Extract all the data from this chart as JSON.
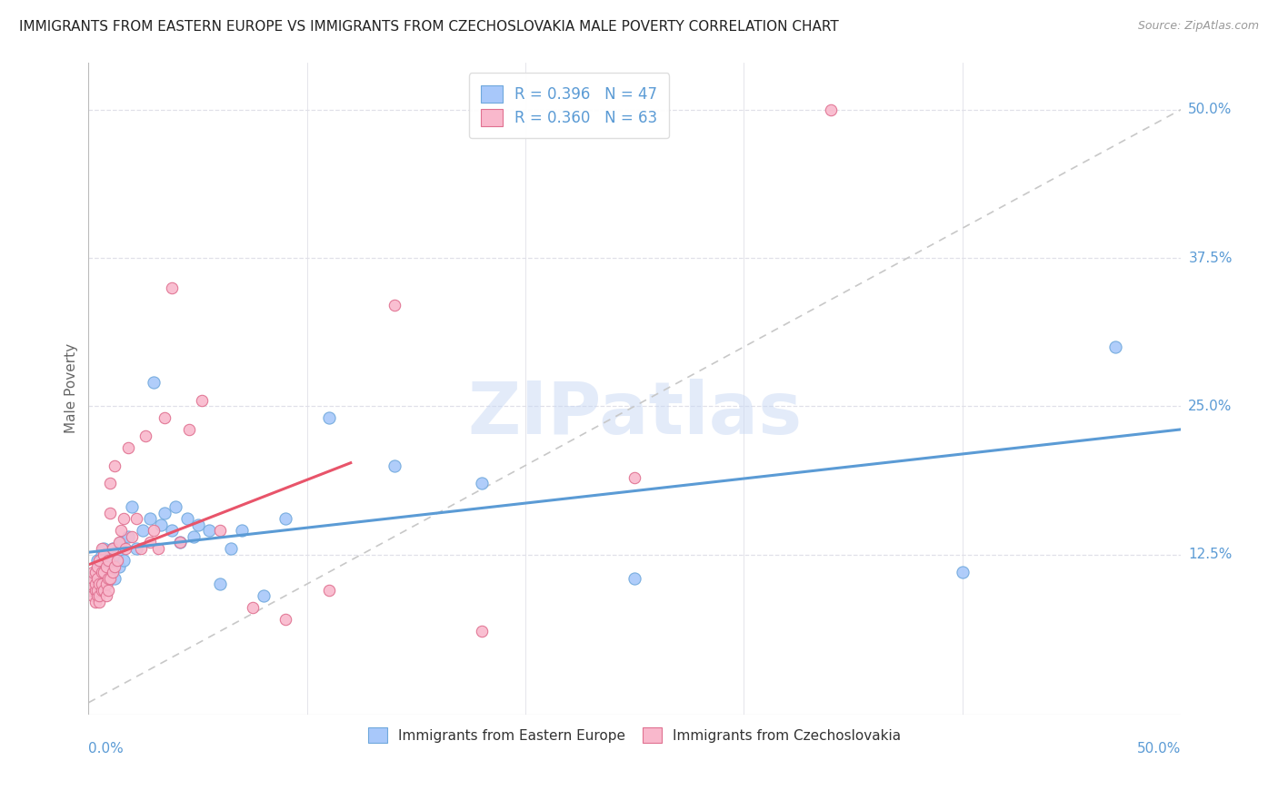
{
  "title": "IMMIGRANTS FROM EASTERN EUROPE VS IMMIGRANTS FROM CZECHOSLOVAKIA MALE POVERTY CORRELATION CHART",
  "source": "Source: ZipAtlas.com",
  "ylabel": "Male Poverty",
  "ytick_labels": [
    "12.5%",
    "25.0%",
    "37.5%",
    "50.0%"
  ],
  "ytick_vals": [
    0.125,
    0.25,
    0.375,
    0.5
  ],
  "xlim": [
    0,
    0.5
  ],
  "ylim": [
    -0.01,
    0.54
  ],
  "legend_blue_label": "R = 0.396   N = 47",
  "legend_pink_label": "R = 0.360   N = 63",
  "xlabel_bottom_left": "0.0%",
  "xlabel_bottom_right": "50.0%",
  "legend_blue_scatter": "Immigrants from Eastern Europe",
  "legend_pink_scatter": "Immigrants from Czechoslovakia",
  "watermark": "ZIPatlas",
  "blue_color": "#a8c8fa",
  "pink_color": "#f9b8cc",
  "blue_dot_edge": "#6fa8dc",
  "pink_dot_edge": "#e07090",
  "blue_line_color": "#5b9bd5",
  "pink_line_color": "#e8546a",
  "diag_line_color": "#c8c8c8",
  "grid_color": "#e0e0e8",
  "blue_x": [
    0.002,
    0.003,
    0.003,
    0.004,
    0.004,
    0.005,
    0.005,
    0.006,
    0.006,
    0.007,
    0.007,
    0.008,
    0.009,
    0.01,
    0.01,
    0.011,
    0.012,
    0.013,
    0.014,
    0.015,
    0.016,
    0.018,
    0.02,
    0.022,
    0.025,
    0.028,
    0.03,
    0.033,
    0.035,
    0.038,
    0.04,
    0.042,
    0.045,
    0.048,
    0.05,
    0.055,
    0.06,
    0.065,
    0.07,
    0.08,
    0.09,
    0.11,
    0.14,
    0.18,
    0.25,
    0.4,
    0.47
  ],
  "blue_y": [
    0.105,
    0.11,
    0.095,
    0.12,
    0.1,
    0.115,
    0.105,
    0.1,
    0.125,
    0.11,
    0.13,
    0.1,
    0.115,
    0.12,
    0.11,
    0.13,
    0.105,
    0.125,
    0.115,
    0.135,
    0.12,
    0.14,
    0.165,
    0.13,
    0.145,
    0.155,
    0.27,
    0.15,
    0.16,
    0.145,
    0.165,
    0.135,
    0.155,
    0.14,
    0.15,
    0.145,
    0.1,
    0.13,
    0.145,
    0.09,
    0.155,
    0.24,
    0.2,
    0.185,
    0.105,
    0.11,
    0.3
  ],
  "pink_x": [
    0.001,
    0.001,
    0.002,
    0.002,
    0.002,
    0.003,
    0.003,
    0.003,
    0.003,
    0.004,
    0.004,
    0.004,
    0.004,
    0.005,
    0.005,
    0.005,
    0.005,
    0.006,
    0.006,
    0.006,
    0.006,
    0.007,
    0.007,
    0.007,
    0.008,
    0.008,
    0.008,
    0.009,
    0.009,
    0.009,
    0.01,
    0.01,
    0.01,
    0.011,
    0.011,
    0.012,
    0.012,
    0.013,
    0.014,
    0.015,
    0.016,
    0.017,
    0.018,
    0.02,
    0.022,
    0.024,
    0.026,
    0.028,
    0.03,
    0.032,
    0.035,
    0.038,
    0.042,
    0.046,
    0.052,
    0.06,
    0.075,
    0.09,
    0.11,
    0.14,
    0.18,
    0.25,
    0.34
  ],
  "pink_y": [
    0.095,
    0.1,
    0.09,
    0.105,
    0.11,
    0.085,
    0.095,
    0.1,
    0.11,
    0.09,
    0.095,
    0.105,
    0.115,
    0.085,
    0.09,
    0.1,
    0.12,
    0.095,
    0.1,
    0.11,
    0.13,
    0.095,
    0.11,
    0.125,
    0.09,
    0.1,
    0.115,
    0.095,
    0.105,
    0.12,
    0.16,
    0.105,
    0.185,
    0.11,
    0.13,
    0.115,
    0.2,
    0.12,
    0.135,
    0.145,
    0.155,
    0.13,
    0.215,
    0.14,
    0.155,
    0.13,
    0.225,
    0.135,
    0.145,
    0.13,
    0.24,
    0.35,
    0.135,
    0.23,
    0.255,
    0.145,
    0.08,
    0.07,
    0.095,
    0.335,
    0.06,
    0.19,
    0.5
  ]
}
